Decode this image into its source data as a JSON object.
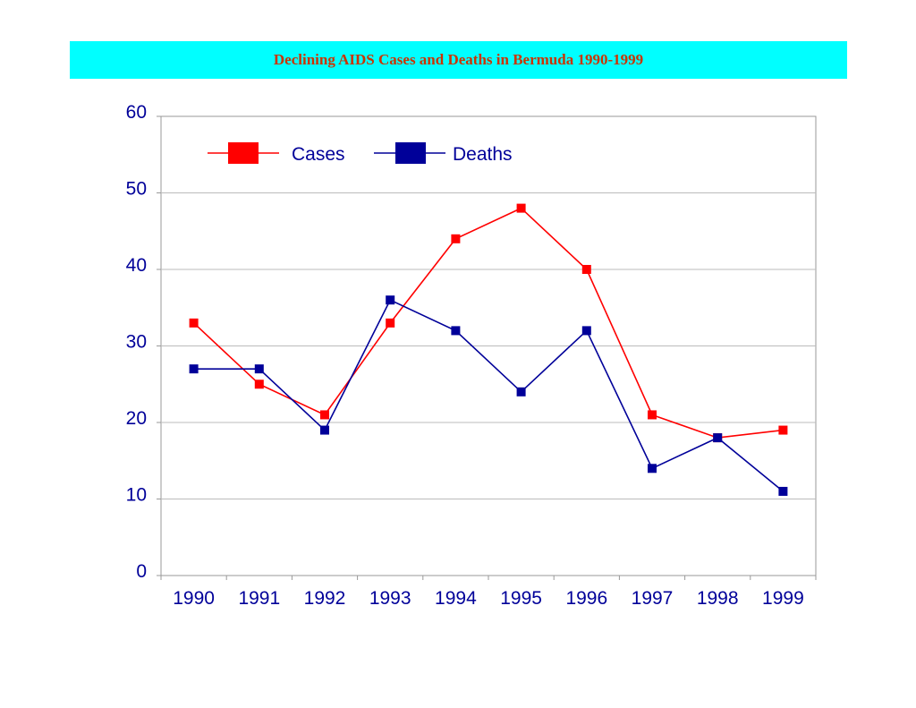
{
  "title": "Declining AIDS Cases and Deaths in Bermuda 1990-1999",
  "chart_data": {
    "type": "line",
    "title": "Declining AIDS Cases and Deaths in Bermuda 1990-1999",
    "xlabel": "",
    "ylabel": "",
    "categories": [
      "1990",
      "1991",
      "1992",
      "1993",
      "1994",
      "1995",
      "1996",
      "1997",
      "1998",
      "1999"
    ],
    "yticks": [
      "0",
      "10",
      "20",
      "30",
      "40",
      "50",
      "60"
    ],
    "ylim": [
      0,
      60
    ],
    "grid": "horizontal",
    "legend_position": "top-left",
    "series": [
      {
        "name": "Cases",
        "color": "#ff0000",
        "values": [
          33,
          25,
          21,
          33,
          44,
          48,
          40,
          21,
          18,
          19
        ]
      },
      {
        "name": "Deaths",
        "color": "#000099",
        "values": [
          27,
          27,
          19,
          36,
          32,
          24,
          32,
          14,
          18,
          11
        ]
      }
    ]
  },
  "colors": {
    "title_background": "#00ffff",
    "title_text": "#cc3300",
    "axis_text": "#000099"
  }
}
